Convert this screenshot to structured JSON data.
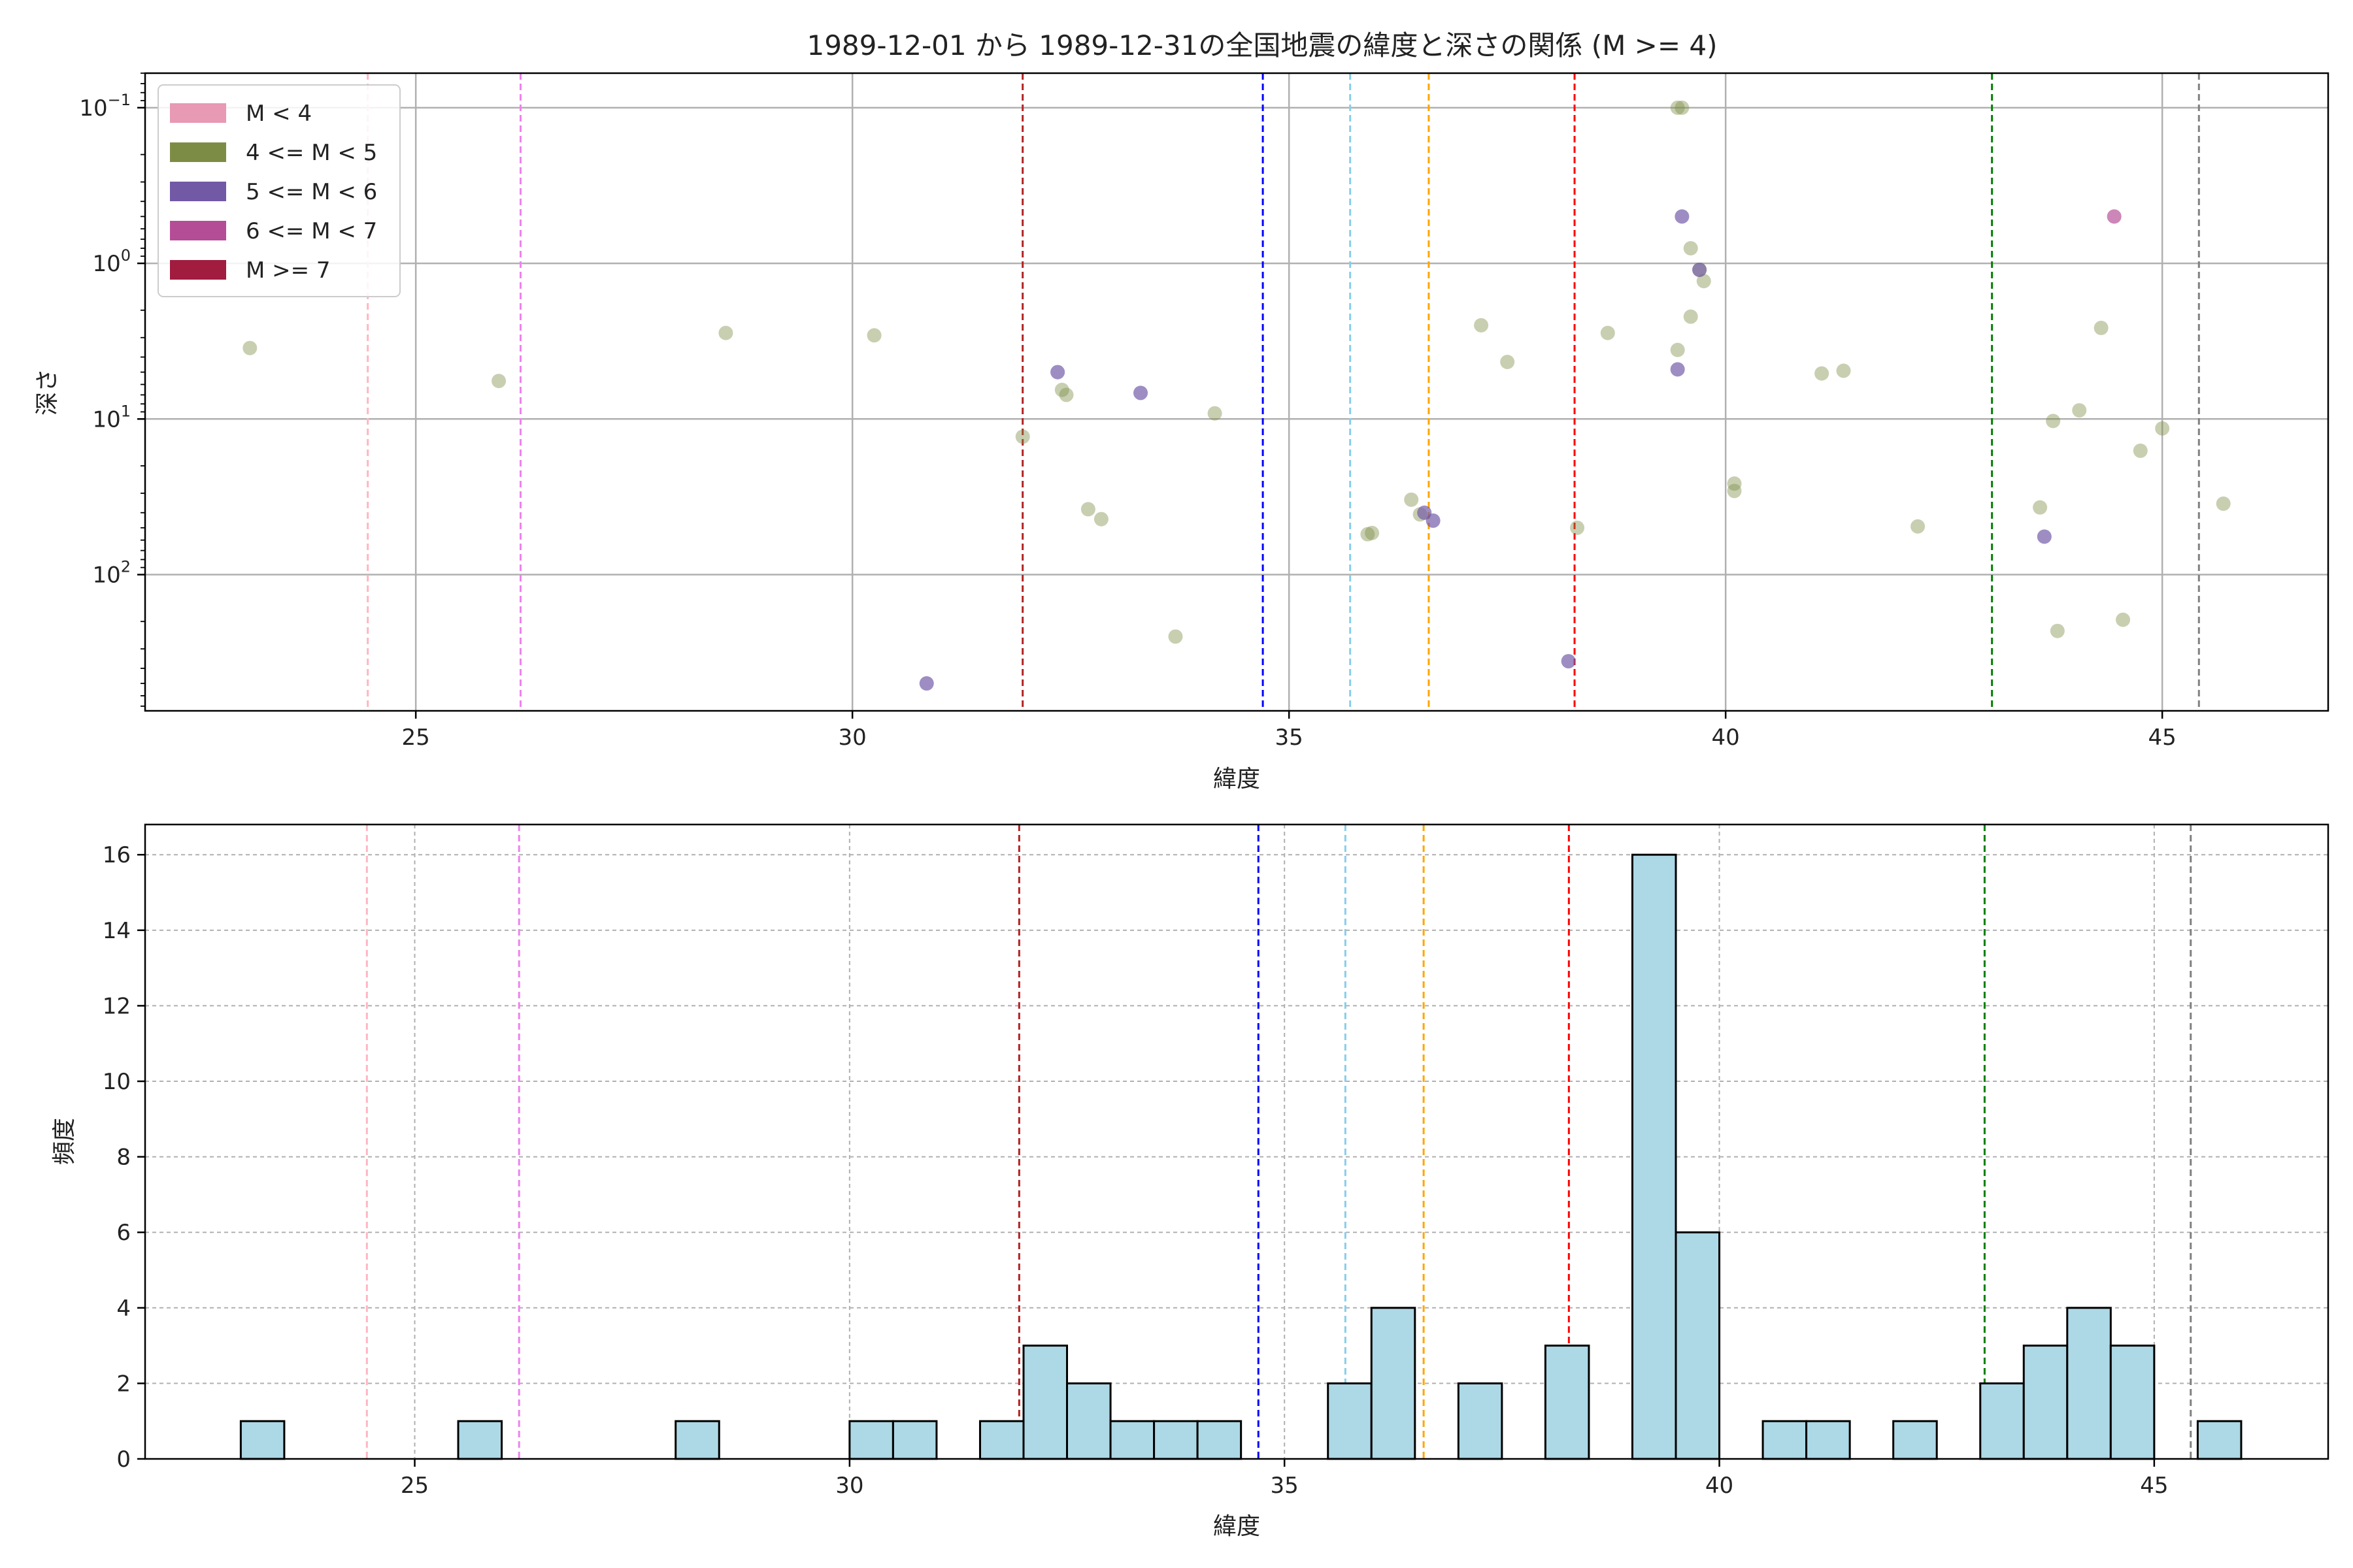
{
  "chart_data": [
    {
      "type": "scatter",
      "title": "1989-12-01 から 1989-12-31の全国地震の緯度と深さの関係 (M >= 4)",
      "xlabel": "緯度",
      "ylabel": "深さ",
      "xlim": [
        21.9,
        46.9
      ],
      "ylim": [
        0.06,
        750
      ],
      "yscale": "log",
      "y_axis_inverted": true,
      "grid": true,
      "legend_position": "top-left",
      "xticks": [
        25,
        30,
        35,
        40,
        45
      ],
      "yticks": [
        {
          "value": 0.1,
          "base": "10",
          "exp": "−1"
        },
        {
          "value": 1,
          "base": "10",
          "exp": "0"
        },
        {
          "value": 10,
          "base": "10",
          "exp": "1"
        },
        {
          "value": 100,
          "base": "10",
          "exp": "2"
        }
      ],
      "legend": [
        {
          "label": "M < 4",
          "color": "#e899b4"
        },
        {
          "label": "4 <= M < 5",
          "color": "#7d8c45"
        },
        {
          "label": "5 <= M < 6",
          "color": "#7259a6"
        },
        {
          "label": "6 <= M < 7",
          "color": "#b54d96"
        },
        {
          "label": "M >= 7",
          "color": "#a11c3f"
        }
      ],
      "reference_lines": [
        {
          "x": 24.45,
          "color": "#ffb6c1"
        },
        {
          "x": 26.2,
          "color": "#ee82ee"
        },
        {
          "x": 31.95,
          "color": "#b22222"
        },
        {
          "x": 34.7,
          "color": "#0000ff"
        },
        {
          "x": 35.7,
          "color": "#87ceeb"
        },
        {
          "x": 36.6,
          "color": "#ffa500"
        },
        {
          "x": 38.27,
          "color": "#ff0000"
        },
        {
          "x": 43.05,
          "color": "#008000"
        },
        {
          "x": 45.42,
          "color": "#808080"
        }
      ],
      "series": [
        {
          "name": "4 <= M < 5",
          "color": "#7d8c45",
          "points": [
            [
              23.1,
              3.5
            ],
            [
              25.95,
              5.7
            ],
            [
              28.55,
              2.8
            ],
            [
              30.25,
              2.9
            ],
            [
              31.95,
              13
            ],
            [
              32.4,
              6.5
            ],
            [
              32.45,
              7.0
            ],
            [
              32.7,
              38
            ],
            [
              32.85,
              44
            ],
            [
              33.7,
              250
            ],
            [
              34.15,
              9.2
            ],
            [
              35.9,
              55
            ],
            [
              35.95,
              54
            ],
            [
              36.4,
              33
            ],
            [
              36.5,
              41
            ],
            [
              37.2,
              2.5
            ],
            [
              37.5,
              4.3
            ],
            [
              38.3,
              50
            ],
            [
              38.65,
              2.8
            ],
            [
              39.45,
              0.1
            ],
            [
              39.5,
              0.1
            ],
            [
              39.45,
              3.6
            ],
            [
              39.6,
              2.2
            ],
            [
              39.6,
              0.8
            ],
            [
              39.7,
              1.1
            ],
            [
              39.75,
              1.3
            ],
            [
              40.1,
              26
            ],
            [
              40.1,
              29
            ],
            [
              41.1,
              5.1
            ],
            [
              41.35,
              4.9
            ],
            [
              42.2,
              49
            ],
            [
              43.6,
              37
            ],
            [
              43.75,
              10.3
            ],
            [
              43.8,
              230
            ],
            [
              44.05,
              8.8
            ],
            [
              44.3,
              2.6
            ],
            [
              44.55,
              195
            ],
            [
              44.75,
              16
            ],
            [
              45.0,
              11.5
            ],
            [
              45.7,
              35
            ]
          ]
        },
        {
          "name": "5 <= M < 6",
          "color": "#7259a6",
          "points": [
            [
              30.85,
              500
            ],
            [
              32.35,
              5.0
            ],
            [
              33.3,
              6.8
            ],
            [
              36.55,
              40
            ],
            [
              36.65,
              45
            ],
            [
              38.2,
              360
            ],
            [
              39.45,
              4.8
            ],
            [
              39.5,
              0.5
            ],
            [
              39.7,
              1.1
            ],
            [
              43.65,
              57
            ]
          ]
        },
        {
          "name": "6 <= M < 7",
          "color": "#b54d96",
          "points": [
            [
              44.45,
              0.5
            ]
          ]
        }
      ]
    },
    {
      "type": "bar",
      "title": "",
      "xlabel": "緯度",
      "ylabel": "頻度",
      "xlim": [
        21.9,
        47.0
      ],
      "ylim": [
        0,
        16.8
      ],
      "grid": true,
      "xticks": [
        25,
        30,
        35,
        40,
        45
      ],
      "yticks": [
        0,
        2,
        4,
        6,
        8,
        10,
        12,
        14,
        16
      ],
      "bar_color": "#add8e6",
      "edge_color": "#000000",
      "bin_width": 0.5,
      "bins": [
        {
          "start": 23.0,
          "count": 1
        },
        {
          "start": 25.5,
          "count": 1
        },
        {
          "start": 28.0,
          "count": 1
        },
        {
          "start": 30.0,
          "count": 1
        },
        {
          "start": 30.5,
          "count": 1
        },
        {
          "start": 31.5,
          "count": 1
        },
        {
          "start": 32.0,
          "count": 3
        },
        {
          "start": 32.5,
          "count": 2
        },
        {
          "start": 33.0,
          "count": 1
        },
        {
          "start": 33.5,
          "count": 1
        },
        {
          "start": 34.0,
          "count": 1
        },
        {
          "start": 35.5,
          "count": 2
        },
        {
          "start": 36.0,
          "count": 4
        },
        {
          "start": 37.0,
          "count": 2
        },
        {
          "start": 38.0,
          "count": 3
        },
        {
          "start": 39.0,
          "count": 16
        },
        {
          "start": 39.5,
          "count": 6
        },
        {
          "start": 40.5,
          "count": 1
        },
        {
          "start": 41.0,
          "count": 1
        },
        {
          "start": 42.0,
          "count": 1
        },
        {
          "start": 43.0,
          "count": 2
        },
        {
          "start": 43.5,
          "count": 3
        },
        {
          "start": 44.0,
          "count": 4
        },
        {
          "start": 44.5,
          "count": 3
        },
        {
          "start": 45.5,
          "count": 1
        }
      ],
      "reference_lines": [
        {
          "x": 24.45,
          "color": "#ffb6c1"
        },
        {
          "x": 26.2,
          "color": "#ee82ee"
        },
        {
          "x": 31.95,
          "color": "#b22222"
        },
        {
          "x": 34.7,
          "color": "#0000ff"
        },
        {
          "x": 35.7,
          "color": "#87ceeb"
        },
        {
          "x": 36.6,
          "color": "#ffa500"
        },
        {
          "x": 38.27,
          "color": "#ff0000"
        },
        {
          "x": 43.05,
          "color": "#008000"
        },
        {
          "x": 45.42,
          "color": "#808080"
        }
      ]
    }
  ]
}
